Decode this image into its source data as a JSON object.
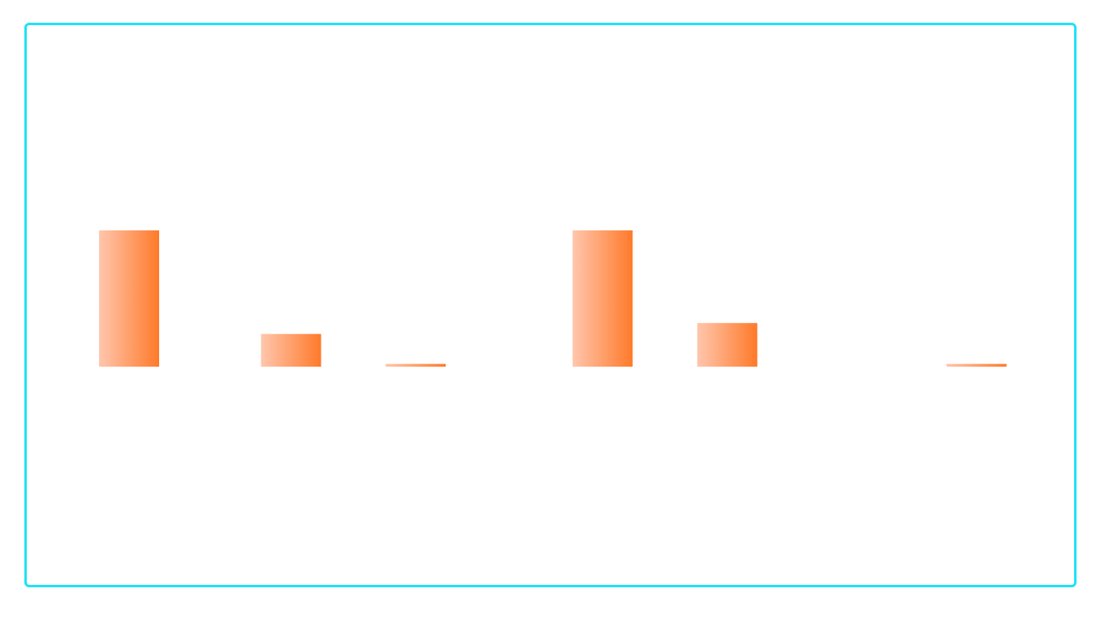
{
  "colors": {
    "frame_border": "#1ee3f5",
    "bar_light": "#ffc6ad",
    "bar_dark": "#ff7a2a",
    "background": "#ffffff"
  },
  "chart_data": {
    "type": "bar",
    "title": "",
    "xlabel": "",
    "ylabel": "",
    "grid": false,
    "legend": "none",
    "ylim": [
      0,
      100
    ],
    "bars": [
      {
        "x": 1.0,
        "value": 100
      },
      {
        "x": 2.3,
        "value": 24
      },
      {
        "x": 3.3,
        "value": 2
      },
      {
        "x": 4.8,
        "value": 100
      },
      {
        "x": 5.8,
        "value": 32
      },
      {
        "x": 7.8,
        "value": 2
      }
    ]
  }
}
